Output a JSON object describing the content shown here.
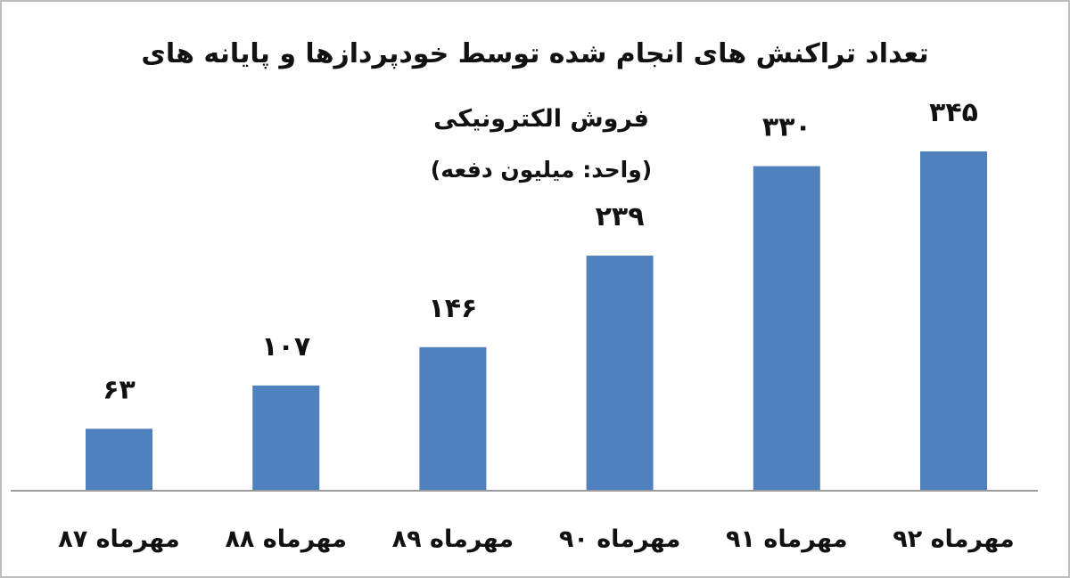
{
  "chart_data": {
    "type": "bar",
    "title_line1": "تعداد تراکنش های انجام شده توسط خودپردازها و پایانه های",
    "title_line2": "فروش الکترونیکی",
    "subtitle": "(واحد: میلیون دفعه)",
    "categories": [
      "مهرماه ۸۷",
      "مهرماه ۸۸",
      "مهرماه ۸۹",
      "مهرماه ۹۰",
      "مهرماه ۹۱",
      "مهرماه ۹۲"
    ],
    "values": [
      63,
      107,
      146,
      239,
      330,
      345
    ],
    "data_labels": [
      "۶۳",
      "۱۰۷",
      "۱۴۶",
      "۲۳۹",
      "۳۳۰",
      "۳۴۵"
    ],
    "xlabel": "",
    "ylabel": "",
    "ylim": [
      0,
      345
    ],
    "grid": false,
    "legend": "none",
    "colors": {
      "bar": "#4f81bd",
      "axis": "#9a9a9a",
      "text": "#111111"
    }
  }
}
